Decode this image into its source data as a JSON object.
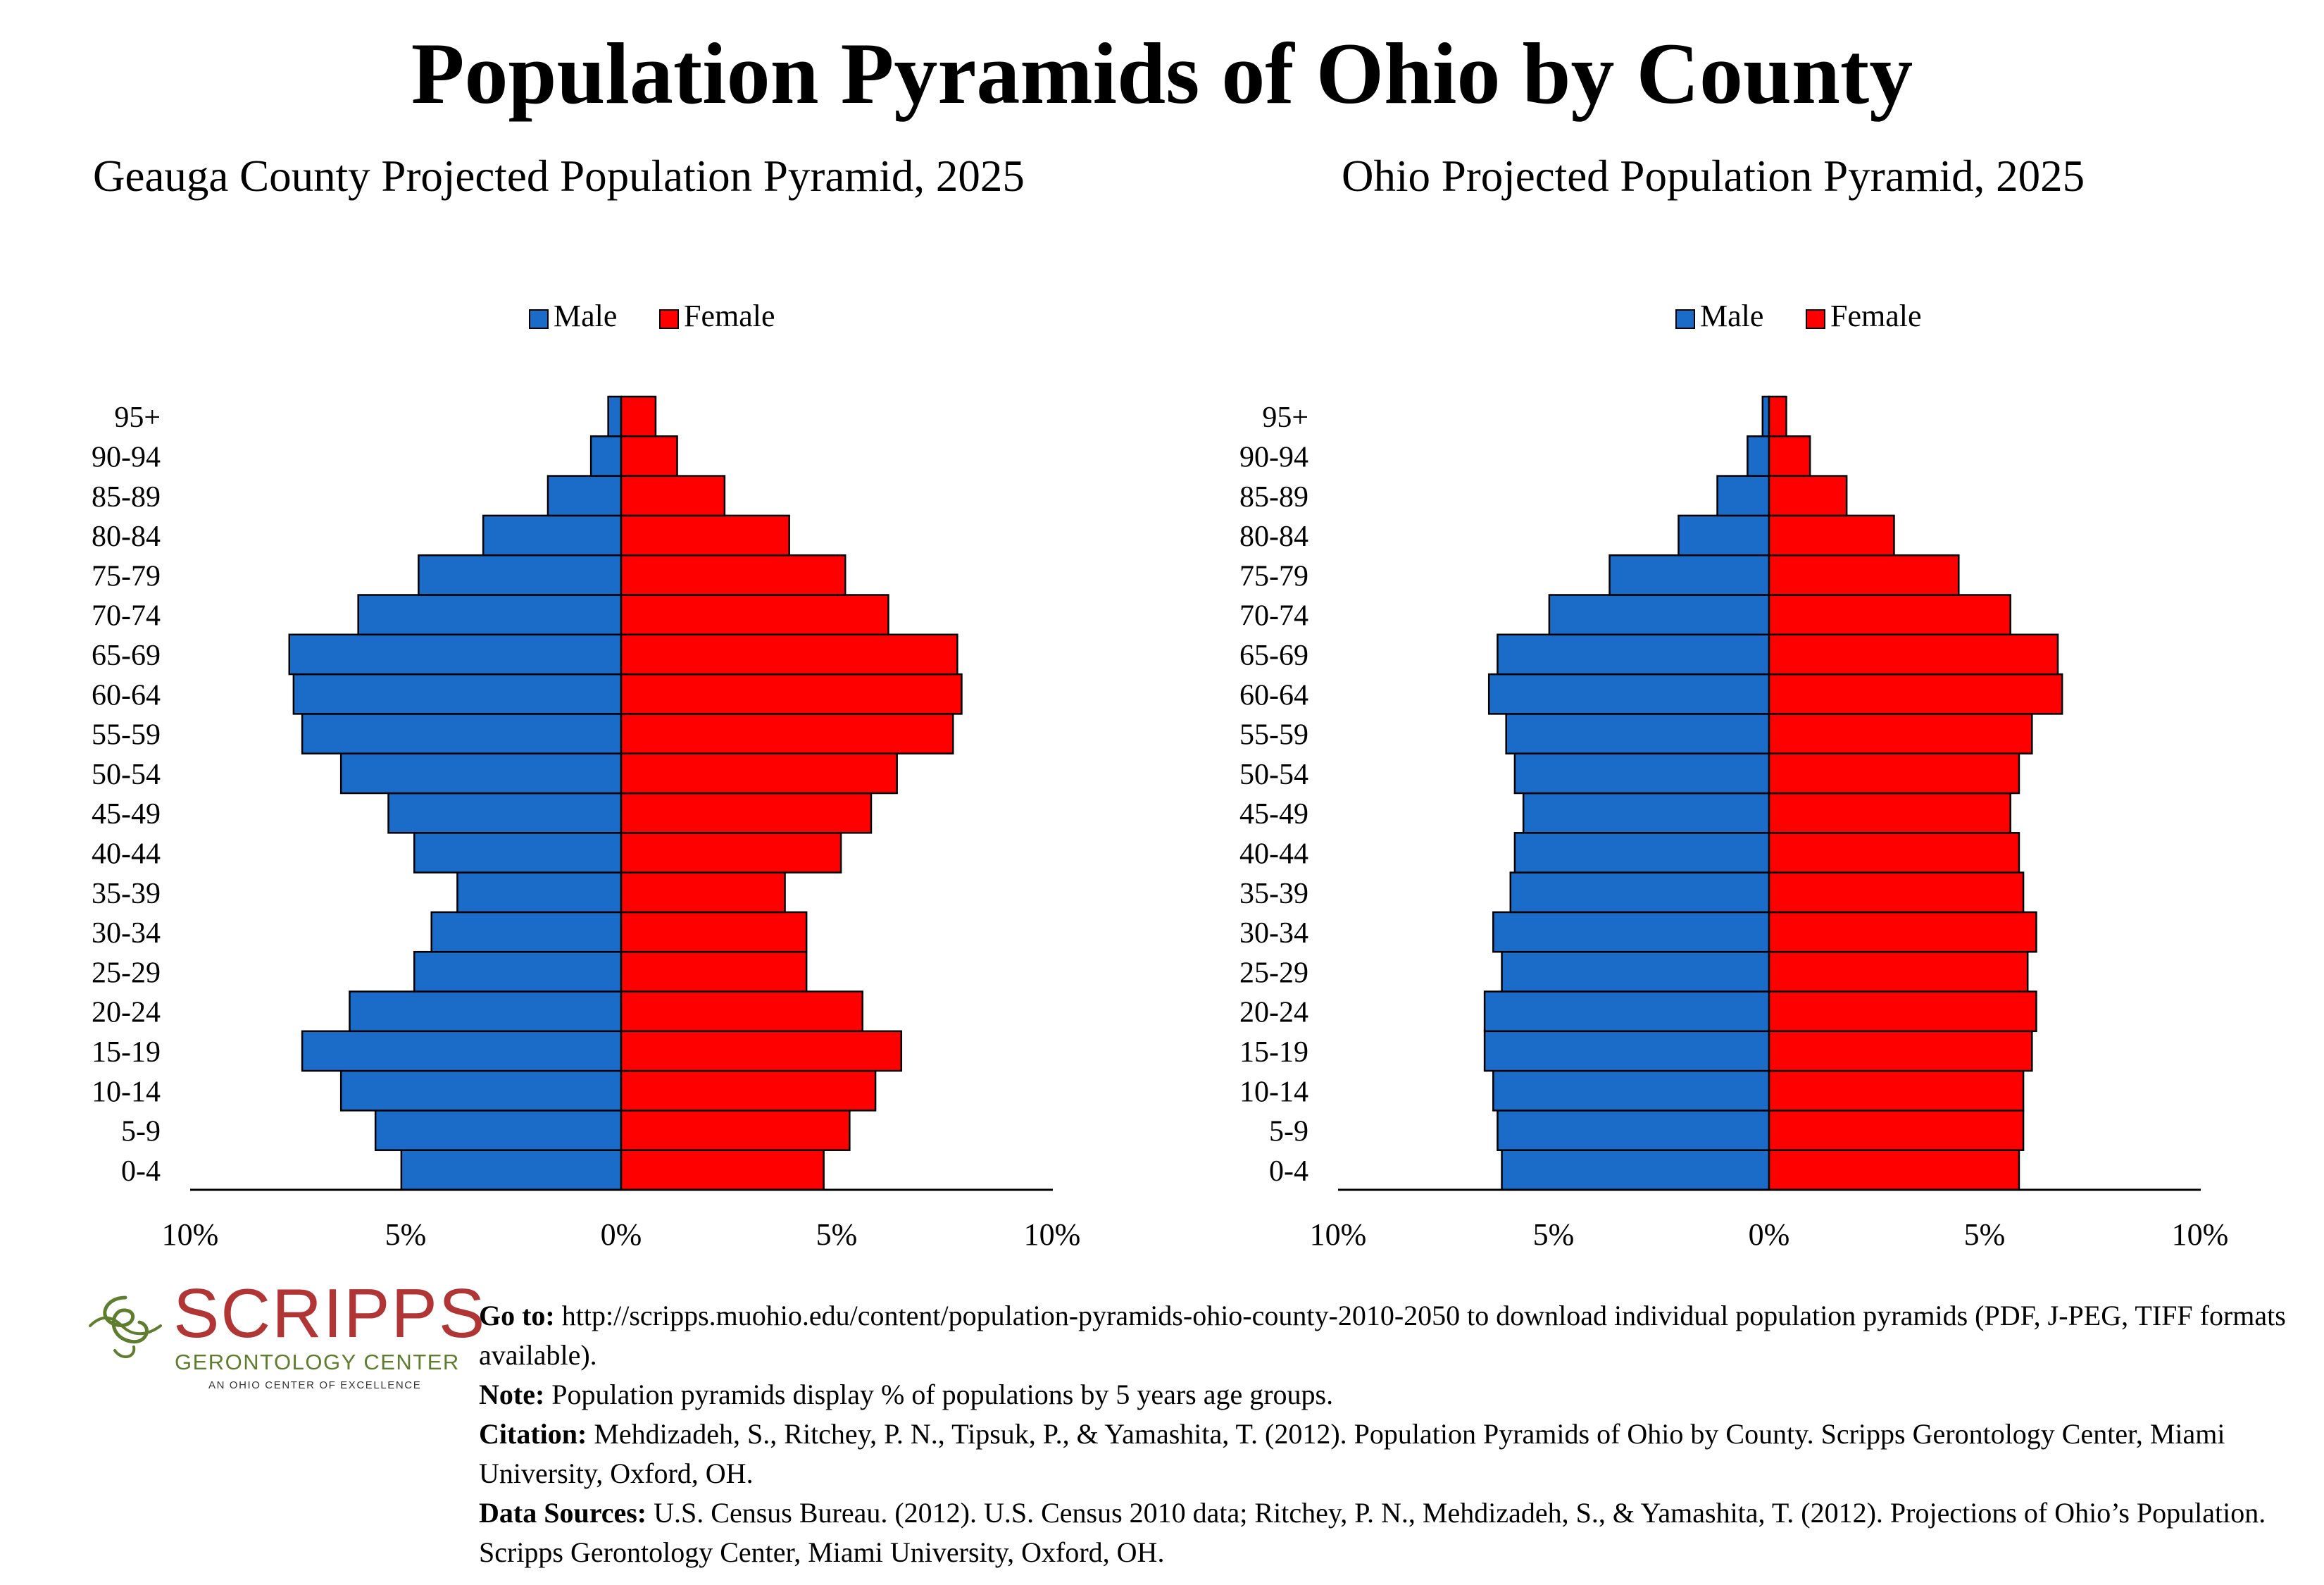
{
  "main_title": "Population Pyramids of Ohio by County",
  "colors": {
    "male": "#1a6cc8",
    "female": "#ff0000"
  },
  "legend": {
    "male": "Male",
    "female": "Female"
  },
  "chart_data": [
    {
      "type": "bar",
      "orientation": "population-pyramid",
      "title": "Geauga County Projected Population Pyramid, 2025",
      "categories": [
        "0-4",
        "5-9",
        "10-14",
        "15-19",
        "20-24",
        "25-29",
        "30-34",
        "35-39",
        "40-44",
        "45-49",
        "50-54",
        "55-59",
        "60-64",
        "65-69",
        "70-74",
        "75-79",
        "80-84",
        "85-89",
        "90-94",
        "95+"
      ],
      "series": [
        {
          "name": "Male",
          "values": [
            5.1,
            5.7,
            6.5,
            7.4,
            6.3,
            4.8,
            4.4,
            3.8,
            4.8,
            5.4,
            6.5,
            7.4,
            7.6,
            7.7,
            6.1,
            4.7,
            3.2,
            1.7,
            0.7,
            0.3
          ]
        },
        {
          "name": "Female",
          "values": [
            4.7,
            5.3,
            5.9,
            6.5,
            5.6,
            4.3,
            4.3,
            3.8,
            5.1,
            5.8,
            6.4,
            7.7,
            7.9,
            7.8,
            6.2,
            5.2,
            3.9,
            2.4,
            1.3,
            0.8
          ]
        }
      ],
      "xlim": [
        -10,
        10
      ],
      "xticks": [
        "10%",
        "5%",
        "0%",
        "5%",
        "10%"
      ],
      "legend_position": "top-center"
    },
    {
      "type": "bar",
      "orientation": "population-pyramid",
      "title": "Ohio Projected Population Pyramid, 2025",
      "categories": [
        "0-4",
        "5-9",
        "10-14",
        "15-19",
        "20-24",
        "25-29",
        "30-34",
        "35-39",
        "40-44",
        "45-49",
        "50-54",
        "55-59",
        "60-64",
        "65-69",
        "70-74",
        "75-79",
        "80-84",
        "85-89",
        "90-94",
        "95+"
      ],
      "series": [
        {
          "name": "Male",
          "values": [
            6.2,
            6.3,
            6.4,
            6.6,
            6.6,
            6.2,
            6.4,
            6.0,
            5.9,
            5.7,
            5.9,
            6.1,
            6.5,
            6.3,
            5.1,
            3.7,
            2.1,
            1.2,
            0.5,
            0.15
          ]
        },
        {
          "name": "Female",
          "values": [
            5.8,
            5.9,
            5.9,
            6.1,
            6.2,
            6.0,
            6.2,
            5.9,
            5.8,
            5.6,
            5.8,
            6.1,
            6.8,
            6.7,
            5.6,
            4.4,
            2.9,
            1.8,
            0.95,
            0.4
          ]
        }
      ],
      "xlim": [
        -10,
        10
      ],
      "xticks": [
        "10%",
        "5%",
        "0%",
        "5%",
        "10%"
      ],
      "legend_position": "top-center"
    }
  ],
  "logo": {
    "name": "SCRIPPS",
    "subtitle": "GERONTOLOGY CENTER",
    "tagline": "AN OHIO CENTER OF EXCELLENCE"
  },
  "notes": {
    "goto_label": "Go to:",
    "goto_text": " http://scripps.muohio.edu/content/population-pyramids-ohio-county-2010-2050 to download individual population pyramids (PDF, J-PEG, TIFF formats available).",
    "note_label": "Note:",
    "note_text": " Population pyramids display % of populations by 5 years age groups.",
    "citation_label": "Citation:",
    "citation_text": " Mehdizadeh, S., Ritchey, P. N., Tipsuk, P., & Yamashita, T. (2012). Population Pyramids of Ohio by County. Scripps Gerontology Center, Miami University, Oxford, OH.",
    "sources_label": "Data Sources:",
    "sources_text": " U.S. Census Bureau. (2012). U.S. Census 2010 data; Ritchey, P. N., Mehdizadeh, S., & Yamashita, T. (2012). Projections of Ohio’s Population. Scripps Gerontology Center, Miami University, Oxford, OH."
  }
}
